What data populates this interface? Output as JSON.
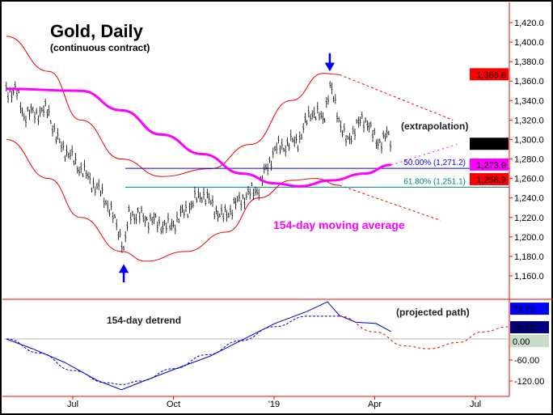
{
  "chart_data": {
    "type": "line",
    "title": "Gold, Daily",
    "subtitle": "(continuous contract)",
    "x_unit": "months since Apr 2018",
    "x_ticks": [
      {
        "label": "Jul",
        "m": 3
      },
      {
        "label": "Oct",
        "m": 6
      },
      {
        "label": "'19",
        "m": 9
      },
      {
        "label": "Apr",
        "m": 12
      },
      {
        "label": "Jul",
        "m": 15
      }
    ],
    "price_axis": {
      "ylim": [
        1140,
        1430
      ],
      "ticks": [
        "1,420.0",
        "1,400.0",
        "1,380.0",
        "1,360.0",
        "1,340.0",
        "1,320.0",
        "1,300.0",
        "1,280.0",
        "1,260.0",
        "1,240.0",
        "1,220.0",
        "1,200.0",
        "1,180.0",
        "1,160.0"
      ],
      "tick_values": [
        1420,
        1400,
        1380,
        1360,
        1340,
        1320,
        1300,
        1280,
        1260,
        1240,
        1220,
        1200,
        1180,
        1160
      ]
    },
    "price_labels": [
      {
        "text": "1,366.6",
        "value": 1366.6,
        "color": "#ff0000"
      },
      {
        "text": "1,295.2",
        "value": 1295.2,
        "color": "#000000"
      },
      {
        "text": "1,273.9",
        "value": 1273.9,
        "color": "#ff00ff"
      },
      {
        "text": "1,258.9",
        "value": 1258.9,
        "color": "#ff0000"
      }
    ],
    "price_path": [
      [
        1.02,
        1350
      ],
      [
        1.31,
        1350
      ],
      [
        1.55,
        1325
      ],
      [
        2.28,
        1330
      ],
      [
        2.52,
        1300
      ],
      [
        3.24,
        1270
      ],
      [
        3.96,
        1240
      ],
      [
        4.45,
        1200
      ],
      [
        4.52,
        1185
      ],
      [
        4.69,
        1225
      ],
      [
        5.89,
        1210
      ],
      [
        6.86,
        1245
      ],
      [
        7.46,
        1220
      ],
      [
        8.06,
        1240
      ],
      [
        8.54,
        1250
      ],
      [
        9.02,
        1290
      ],
      [
        9.75,
        1300
      ],
      [
        10.11,
        1330
      ],
      [
        10.47,
        1320
      ],
      [
        10.66,
        1355
      ],
      [
        10.95,
        1320
      ],
      [
        11.19,
        1295
      ],
      [
        11.43,
        1315
      ],
      [
        11.8,
        1320
      ],
      [
        12.04,
        1295
      ],
      [
        12.35,
        1305
      ],
      [
        12.49,
        1295.2
      ]
    ],
    "moving_average": {
      "label": "154-day moving average",
      "color": "#ff00ff",
      "points": [
        [
          1.02,
          1352
        ],
        [
          3.24,
          1350
        ],
        [
          4.45,
          1330
        ],
        [
          5.65,
          1305
        ],
        [
          6.86,
          1285
        ],
        [
          8.06,
          1265
        ],
        [
          9.02,
          1255
        ],
        [
          9.75,
          1252
        ],
        [
          10.71,
          1258
        ],
        [
          11.68,
          1265
        ],
        [
          12.49,
          1273.9
        ]
      ]
    },
    "upper_envelope": [
      [
        1.02,
        1406
      ],
      [
        2.28,
        1370
      ],
      [
        3.24,
        1320
      ],
      [
        4.45,
        1280
      ],
      [
        5.65,
        1262
      ],
      [
        7.1,
        1270
      ],
      [
        8.3,
        1295
      ],
      [
        9.51,
        1340
      ],
      [
        10.47,
        1368
      ],
      [
        10.95,
        1366.6
      ]
    ],
    "upper_projection": [
      [
        10.95,
        1366.6
      ],
      [
        14.33,
        1320
      ]
    ],
    "lower_envelope": [
      [
        1.02,
        1300
      ],
      [
        2.28,
        1260
      ],
      [
        3.24,
        1220
      ],
      [
        4.45,
        1185
      ],
      [
        5.17,
        1175
      ],
      [
        6.37,
        1185
      ],
      [
        7.58,
        1205
      ],
      [
        8.54,
        1240
      ],
      [
        9.51,
        1258
      ],
      [
        10.23,
        1260
      ],
      [
        10.95,
        1253
      ]
    ],
    "lower_projection": [
      [
        10.95,
        1253
      ],
      [
        13.96,
        1217
      ]
    ],
    "extrapolation": {
      "label": "(extrapolation)",
      "points": [
        [
          12.49,
          1273.9
        ],
        [
          14.45,
          1295
        ]
      ]
    },
    "retracements": [
      {
        "label": "50.00% (1,271.2)",
        "value": 1271.2,
        "color": "#0000ff"
      },
      {
        "label": "61.80% (1,251.1)",
        "value": 1251.1,
        "color": "#008080"
      }
    ],
    "arrows": [
      {
        "dir": "down",
        "m": 10.66,
        "value": 1372
      },
      {
        "dir": "up",
        "m": 4.52,
        "value": 1170
      }
    ],
    "detrend": {
      "label": "154-day detrend",
      "projection_label": "(projected path)",
      "ylim": [
        -140,
        100
      ],
      "ticks": [
        "-60.00",
        "-120.00"
      ],
      "tick_values": [
        -60,
        -120
      ],
      "labels": [
        {
          "text": "73.73",
          "value": 73.73,
          "color": "#0000ff"
        },
        {
          "text": "18.53",
          "value": 18.53,
          "color": "#000080"
        },
        {
          "text": "0.00",
          "value": 0,
          "color": "#c8dcc8"
        }
      ],
      "series": [
        [
          1.02,
          0
        ],
        [
          1.8,
          -28
        ],
        [
          2.76,
          -67
        ],
        [
          3.72,
          -118
        ],
        [
          4.45,
          -145
        ],
        [
          5.17,
          -118
        ],
        [
          6.13,
          -83
        ],
        [
          7.1,
          -49
        ],
        [
          8.06,
          -2
        ],
        [
          9.02,
          44
        ],
        [
          9.99,
          79
        ],
        [
          10.59,
          106
        ],
        [
          10.95,
          67
        ],
        [
          11.43,
          48
        ],
        [
          12.04,
          44
        ],
        [
          12.49,
          21
        ]
      ],
      "cycle": [
        [
          1.02,
          0
        ],
        [
          2.0,
          -40
        ],
        [
          3.0,
          -90
        ],
        [
          4.0,
          -125
        ],
        [
          4.45,
          -130
        ],
        [
          5.0,
          -120
        ],
        [
          6.0,
          -85
        ],
        [
          7.0,
          -45
        ],
        [
          8.0,
          -5
        ],
        [
          9.0,
          35
        ],
        [
          10.0,
          65
        ],
        [
          10.95,
          65
        ]
      ],
      "projection": [
        [
          10.95,
          65
        ],
        [
          12.0,
          20
        ],
        [
          12.9,
          -20
        ],
        [
          13.6,
          -28
        ],
        [
          14.5,
          -10
        ],
        [
          15.2,
          20
        ],
        [
          16.0,
          35
        ]
      ]
    }
  }
}
